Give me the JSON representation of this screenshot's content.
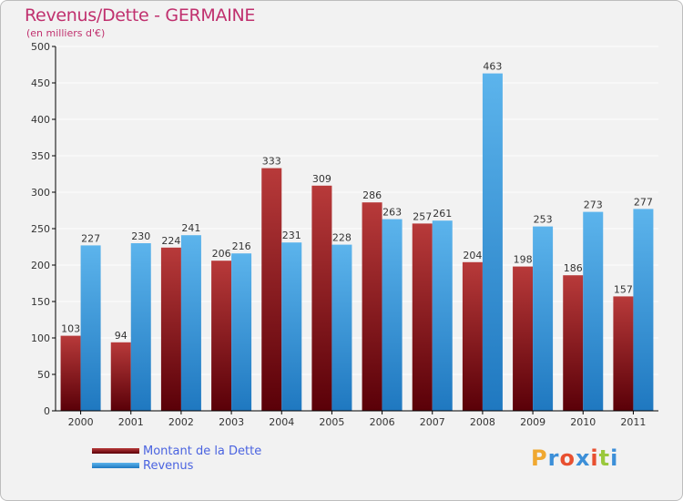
{
  "header": {
    "title": "Revenus/Dette - GERMAINE",
    "subtitle": "(en milliers d'€)"
  },
  "legend": {
    "dette": "Montant de la Dette",
    "revenus": "Revenus"
  },
  "logo": {
    "text": "Proxiti",
    "letters": [
      "P",
      "r",
      "o",
      "x",
      "i",
      "t",
      "i"
    ],
    "colors": [
      "#f0a830",
      "#3c8fd8",
      "#e85030",
      "#3c8fd8",
      "#e85030",
      "#9ac83c",
      "#3c8fd8"
    ]
  },
  "colors": {
    "dette_dark": "#5a0008",
    "dette_light": "#b83a3a",
    "revenus_dark": "#1f78c0",
    "revenus_light": "#5cb4ec",
    "axis": "#000000",
    "grid": "#ffffff",
    "label": "#333333"
  },
  "chart_data": {
    "type": "bar",
    "title": "Revenus/Dette - GERMAINE",
    "ylabel": "(en milliers d'€)",
    "xlabel": "",
    "ylim": [
      0,
      500
    ],
    "yticks": [
      0,
      50,
      100,
      150,
      200,
      250,
      300,
      350,
      400,
      450,
      500
    ],
    "grid": true,
    "categories": [
      "2000",
      "2001",
      "2002",
      "2003",
      "2004",
      "2005",
      "2006",
      "2007",
      "2008",
      "2009",
      "2010",
      "2011"
    ],
    "series": [
      {
        "name": "Montant de la Dette",
        "values": [
          103,
          94,
          224,
          206,
          333,
          309,
          286,
          257,
          204,
          198,
          186,
          157
        ]
      },
      {
        "name": "Revenus",
        "values": [
          227,
          230,
          241,
          216,
          231,
          228,
          263,
          261,
          463,
          253,
          273,
          277
        ]
      }
    ]
  }
}
